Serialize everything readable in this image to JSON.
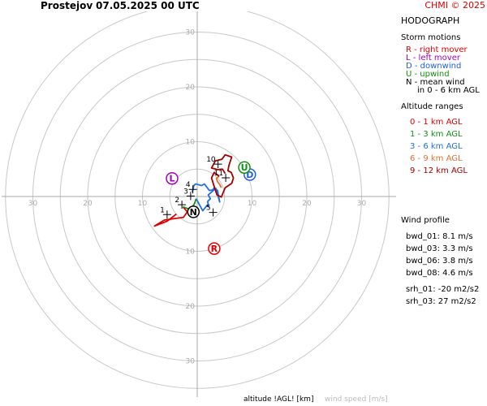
{
  "header": {
    "location": "Prostejov",
    "datetime": "07.05.2025 00 UTC",
    "credit": "CHMI © 2025"
  },
  "panel": {
    "title": "HODOGRAPH",
    "storm_motions_title": "Storm motions",
    "storm_motions": [
      {
        "text": "R - right mover",
        "color": "#e00000"
      },
      {
        "text": "L - left mover",
        "color": "#a000c0"
      },
      {
        "text": "D - downwind",
        "color": "#2060e0"
      },
      {
        "text": "U - upwind",
        "color": "#109010"
      },
      {
        "text": "N - mean wind",
        "color": "#000000"
      },
      {
        "text": "in 0 - 6 km AGL",
        "color": "#000000"
      }
    ],
    "altitude_title": "Altitude ranges",
    "altitude_ranges": [
      {
        "text": "0 - 1 km AGL",
        "color": "#e00000"
      },
      {
        "text": "1 - 3 km AGL",
        "color": "#109010"
      },
      {
        "text": "3 - 6 km AGL",
        "color": "#2070e0"
      },
      {
        "text": "6 - 9 km AGL",
        "color": "#e07030"
      },
      {
        "text": "9 - 12 km AGL",
        "color": "#a00000"
      }
    ],
    "wind_profile_title": "Wind profile",
    "wind_profile": [
      "bwd_01: 8.1 m/s",
      "bwd_03: 3.3 m/s",
      "bwd_06: 3.8 m/s",
      "bwd_08: 4.6 m/s",
      "srh_01: -20 m2/s2",
      "srh_03: 27 m2/s2"
    ]
  },
  "footer": {
    "altitude_label": "altitude !AGL! [km]",
    "speed_label": "wind speed [m/s]"
  },
  "chart_data": {
    "type": "line",
    "x_axis_ticks": [
      "30",
      "20",
      "10",
      "10",
      "20",
      "30"
    ],
    "y_axis_ticks": [
      "30",
      "20",
      "10",
      "10",
      "20",
      "30"
    ],
    "rings": [
      5,
      10,
      15,
      20,
      25,
      30,
      35
    ],
    "series": [
      {
        "color": "#e00000",
        "points": [
          [
            -3.8,
            -3.2
          ],
          [
            -5.5,
            -4.5
          ],
          [
            -7.8,
            -5.4
          ],
          [
            -6.0,
            -4.3
          ],
          [
            -2.5,
            -3.8
          ],
          [
            -1.8,
            -2.8
          ],
          [
            -2.6,
            -1.9
          ]
        ]
      },
      {
        "color": "#109010",
        "points": [
          [
            -2.6,
            -1.9
          ],
          [
            -1.2,
            -2.4
          ],
          [
            -1.0,
            -2.0
          ],
          [
            -0.5,
            -1.3
          ],
          [
            -0.2,
            -0.4
          ]
        ]
      },
      {
        "color": "#2070e0",
        "points": [
          [
            -0.2,
            -0.4
          ],
          [
            1.0,
            -2.6
          ],
          [
            1.8,
            -1.6
          ],
          [
            2.1,
            -1.9
          ],
          [
            1.9,
            -0.9
          ],
          [
            2.4,
            -0.4
          ],
          [
            2.0,
            0.3
          ],
          [
            3.4,
            1.5
          ],
          [
            4.1,
            -1.0
          ],
          [
            3.7,
            1.1
          ],
          [
            3.1,
            1.6
          ],
          [
            2.8,
            1.2
          ],
          [
            2.2,
            1.1
          ],
          [
            1.3,
            2.3
          ],
          [
            0.8,
            2.0
          ],
          [
            -0.3,
            2.3
          ],
          [
            -0.6,
            2.0
          ],
          [
            -0.9,
            0.8
          ]
        ]
      },
      {
        "color": "#e07030",
        "points": [
          [
            4.4,
            1.6
          ],
          [
            4.1,
            2.2
          ],
          [
            3.7,
            2.7
          ],
          [
            3.5,
            3.3
          ],
          [
            4.0,
            3.7
          ]
        ]
      },
      {
        "color": "#a00000",
        "points": [
          [
            4.0,
            3.7
          ],
          [
            3.1,
            4.4
          ],
          [
            2.6,
            3.4
          ],
          [
            3.0,
            2.1
          ],
          [
            3.6,
            0.3
          ],
          [
            4.4,
            -0.1
          ],
          [
            5.1,
            1.6
          ],
          [
            6.3,
            2.4
          ],
          [
            6.6,
            3.4
          ],
          [
            6.2,
            4.4
          ],
          [
            5.6,
            4.7
          ],
          [
            5.8,
            5.7
          ],
          [
            6.3,
            7.2
          ],
          [
            5.1,
            7.6
          ],
          [
            4.5,
            6.8
          ],
          [
            3.3,
            6.5
          ],
          [
            2.6,
            5.2
          ],
          [
            3.7,
            4.9
          ],
          [
            4.6,
            5.0
          ],
          [
            5.1,
            4.2
          ]
        ]
      }
    ],
    "level_labels": [
      {
        "label": "1",
        "x": -5.5,
        "y": -3.3
      },
      {
        "label": "2",
        "x": -2.8,
        "y": -1.5
      },
      {
        "label": "3",
        "x": -1.2,
        "y": 0.1
      },
      {
        "label": "4",
        "x": -0.8,
        "y": 1.3
      },
      {
        "label": "5",
        "x": 2.9,
        "y": -2.9
      },
      {
        "label": "10",
        "x": 3.8,
        "y": 5.9
      },
      {
        "label": "11",
        "x": 5.2,
        "y": 3.4
      }
    ],
    "storm_markers": [
      {
        "letter": "R",
        "x": 3.1,
        "y": -9.5,
        "color": "#e00000"
      },
      {
        "letter": "L",
        "x": -4.6,
        "y": 3.3,
        "color": "#a000c0"
      },
      {
        "letter": "D",
        "x": 9.6,
        "y": 4.0,
        "color": "#2060e0"
      },
      {
        "letter": "U",
        "x": 8.6,
        "y": 5.3,
        "color": "#109010"
      },
      {
        "letter": "N",
        "x": -0.7,
        "y": -2.8,
        "color": "#000000"
      }
    ]
  }
}
